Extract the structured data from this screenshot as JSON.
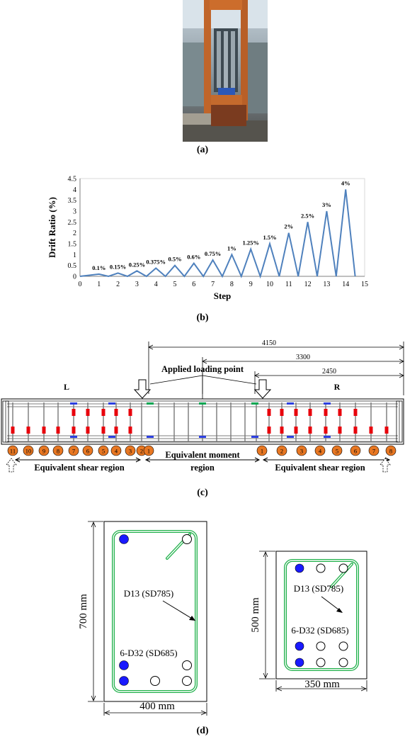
{
  "panels": {
    "a": "(a)",
    "b": "(b)",
    "c": "(c)",
    "d": "(d)"
  },
  "photo": {
    "description_icon": "test-setup-photo"
  },
  "chart_data": {
    "type": "line",
    "xlabel": "Step",
    "ylabel": "Drift Ratio (%)",
    "xlim": [
      0,
      15
    ],
    "ylim": [
      0,
      4.5
    ],
    "xticks": [
      "0",
      "1",
      "2",
      "3",
      "4",
      "5",
      "6",
      "7",
      "8",
      "9",
      "10",
      "11",
      "12",
      "13",
      "14",
      "15"
    ],
    "yticks": [
      "0",
      "0.5",
      "1",
      "1.5",
      "2",
      "2.5",
      "3",
      "3.5",
      "4",
      "4.5"
    ],
    "grid": false,
    "color": "#4f81bd",
    "x": [
      0,
      1,
      1.5,
      2,
      2.5,
      3,
      3.5,
      4,
      4.5,
      5,
      5.5,
      6,
      6.5,
      7,
      7.5,
      8,
      8.5,
      9,
      9.5,
      10,
      10.5,
      11,
      11.5,
      12,
      12.5,
      13,
      13.5,
      14,
      14.5
    ],
    "y": [
      0,
      0.1,
      0,
      0.15,
      0,
      0.25,
      0,
      0.375,
      0,
      0.5,
      0,
      0.6,
      0,
      0.75,
      0,
      1,
      0,
      1.25,
      0,
      1.5,
      0,
      2,
      0,
      2.5,
      0,
      3,
      0,
      4,
      0
    ],
    "annotations": [
      {
        "x": 1,
        "y": 0.1,
        "text": "0.1%"
      },
      {
        "x": 2,
        "y": 0.15,
        "text": "0.15%"
      },
      {
        "x": 3,
        "y": 0.25,
        "text": "0.25%"
      },
      {
        "x": 4,
        "y": 0.375,
        "text": "0.375%"
      },
      {
        "x": 5,
        "y": 0.5,
        "text": "0.5%"
      },
      {
        "x": 6,
        "y": 0.6,
        "text": "0.6%"
      },
      {
        "x": 7,
        "y": 0.75,
        "text": "0.75%"
      },
      {
        "x": 8,
        "y": 1,
        "text": "1%"
      },
      {
        "x": 9,
        "y": 1.25,
        "text": "1.25%"
      },
      {
        "x": 10,
        "y": 1.5,
        "text": "1.5%"
      },
      {
        "x": 11,
        "y": 2,
        "text": "2%"
      },
      {
        "x": 12,
        "y": 2.5,
        "text": "2.5%"
      },
      {
        "x": 13,
        "y": 3,
        "text": "3%"
      },
      {
        "x": 14,
        "y": 4,
        "text": "4%"
      }
    ]
  },
  "beam": {
    "dims": [
      "4150",
      "3300",
      "2450"
    ],
    "loading_label": "Applied loading point",
    "side_left": "L",
    "side_right": "R",
    "left_numbers": [
      "11",
      "10",
      "9",
      "8",
      "7",
      "6",
      "5",
      "4",
      "3",
      "2",
      "1"
    ],
    "right_numbers": [
      "1",
      "2",
      "3",
      "4",
      "5",
      "6",
      "7",
      "8"
    ],
    "region_left": "Equivalent shear region",
    "region_mid_1": "Equivalent moment",
    "region_mid_2": "region",
    "region_right": "Equivalent shear region",
    "circle_color": "#e87722",
    "stirrup_gauge_color": "#e8000b",
    "rebar_gauge_color": "#2c3fe0",
    "moment_gauge_color": "#00a651"
  },
  "sections": {
    "left": {
      "height_label": "700 mm",
      "width_label": "400 mm",
      "stirrup_label": "D13 (SD785)",
      "rebar_label": "6-D32 (SD685)"
    },
    "right": {
      "height_label": "500 mm",
      "width_label": "350 mm",
      "stirrup_label": "D13 (SD785)",
      "rebar_label": "6-D32 (SD685)"
    },
    "stirrup_color": "#22b14c",
    "gauge_bar_color": "#1a1aff"
  }
}
